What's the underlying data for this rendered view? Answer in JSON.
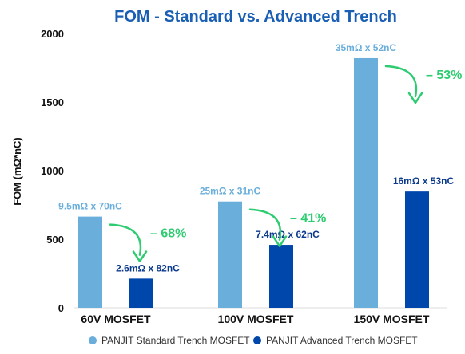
{
  "chart_data": {
    "type": "bar",
    "title": "FOM - Standard vs. Advanced Trench",
    "ylabel": "FOM (mΩ*nC)",
    "xlabel": "",
    "ylim": [
      0,
      2000
    ],
    "yticks": [
      0,
      500,
      1000,
      1500,
      2000
    ],
    "grid": false,
    "legend_position": "bottom",
    "categories": [
      "60V MOSFET",
      "100V MOSFET",
      "150V MOSFET"
    ],
    "series": [
      {
        "name": "PANJIT Standard Trench MOSFET",
        "color": "#6aaedc",
        "label_color": "#6aaedc",
        "values": [
          665,
          775,
          1820
        ],
        "labels": [
          "9.5mΩ x 70nC",
          "25mΩ x 31nC",
          "35mΩ x 52nC"
        ]
      },
      {
        "name": "PANJIT Advanced Trench MOSFET",
        "color": "#0047ab",
        "label_color": "#0b3a8c",
        "values": [
          213,
          459,
          848
        ],
        "labels": [
          "2.6mΩ x 82nC",
          "7.4mΩ x 62nC",
          "16mΩ x 53nC"
        ]
      }
    ],
    "annotations": [
      {
        "text": "– 68%",
        "category": 0
      },
      {
        "text": "– 41%",
        "category": 1
      },
      {
        "text": "– 53%",
        "category": 2
      }
    ],
    "annotation_color": "#2ecc71"
  }
}
